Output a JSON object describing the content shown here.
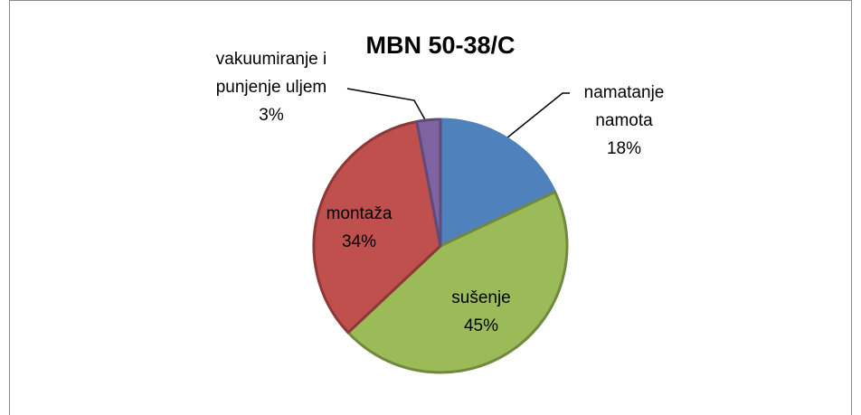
{
  "chart_data": {
    "type": "pie",
    "title": "MBN 50-38/C",
    "categories": [
      "namatanje namota",
      "sušenje",
      "montaža",
      "vakuumiranje i punjenje uljem"
    ],
    "values": [
      18,
      45,
      34,
      3
    ],
    "value_labels": [
      "18%",
      "45%",
      "34%",
      "3%"
    ],
    "colors": [
      "#4f81bd",
      "#9bbb59",
      "#c0504d",
      "#8064a2"
    ]
  }
}
